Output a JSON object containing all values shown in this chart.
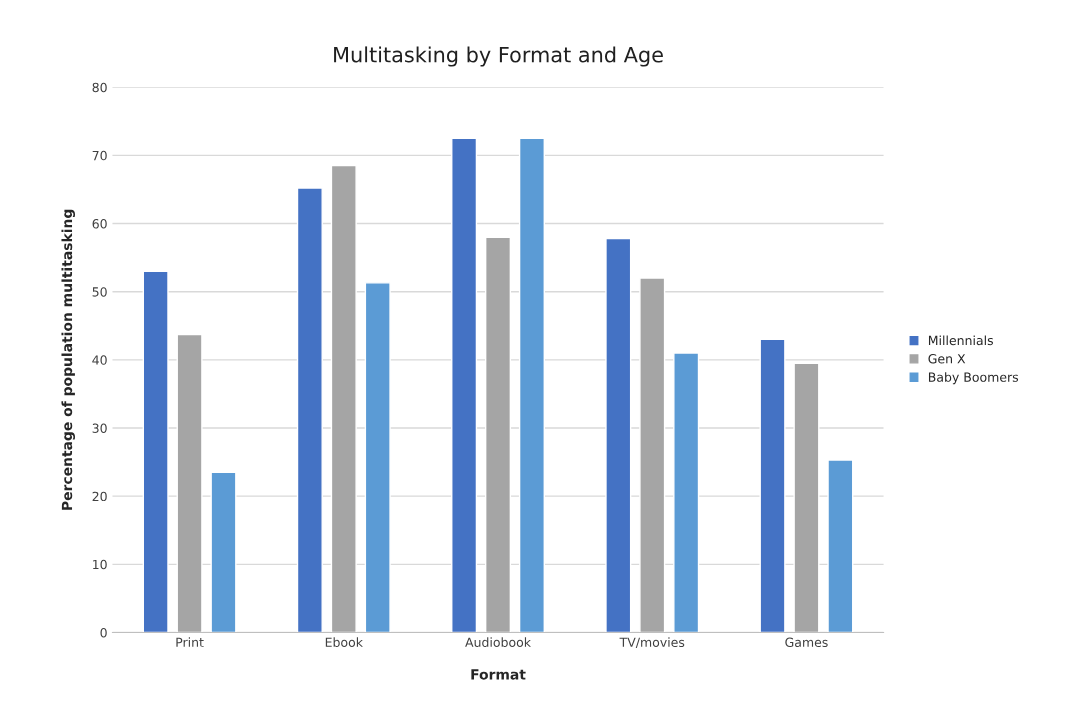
{
  "chart_data": {
    "type": "bar",
    "title": "Multitasking by Format and Age",
    "xlabel": "Format",
    "ylabel": "Percentage of population multitasking",
    "categories": [
      "Print",
      "Ebook",
      "Audiobook",
      "TV/movies",
      "Games"
    ],
    "series": [
      {
        "name": "Millennials",
        "color": "#4472c4",
        "values": [
          53,
          65.2,
          72.5,
          57.8,
          43
        ]
      },
      {
        "name": "Gen X",
        "color": "#a5a5a5",
        "values": [
          43.7,
          68.5,
          58,
          52,
          39.5
        ]
      },
      {
        "name": "Baby Boomers",
        "color": "#5b9bd5",
        "values": [
          23.5,
          51.3,
          72.5,
          41,
          25.3
        ]
      }
    ],
    "ylim": [
      0,
      80
    ],
    "yticks": [
      0,
      10,
      20,
      30,
      40,
      50,
      60,
      70,
      80
    ],
    "grid": "y",
    "legend": "right"
  }
}
